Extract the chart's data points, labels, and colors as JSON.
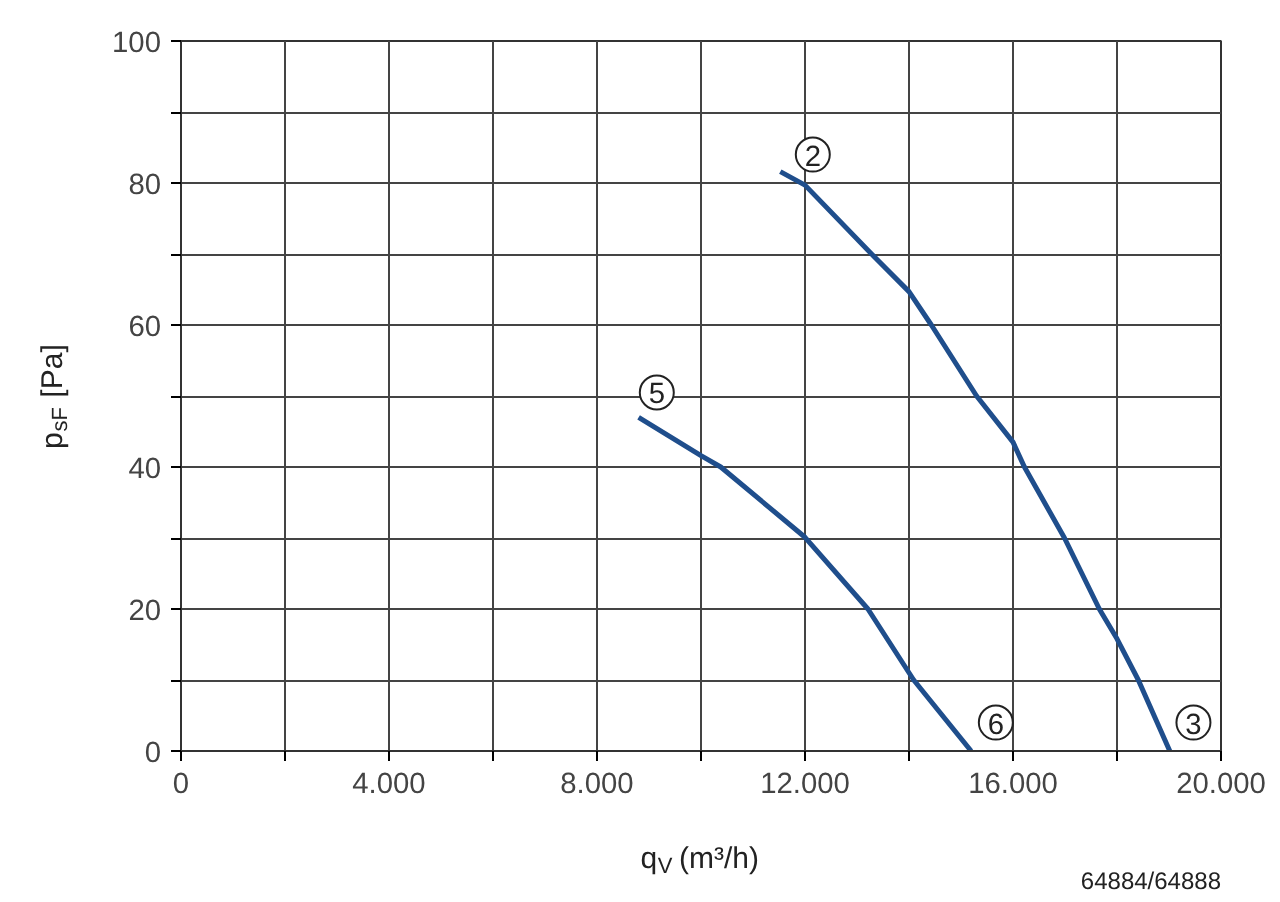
{
  "chart_data": {
    "type": "line",
    "xlabel": "q$_{V}$ (m³/h)",
    "ylabel": "p$_{sF}$ [Pa]",
    "xlim": [
      0,
      20000
    ],
    "ylim": [
      0,
      100
    ],
    "xticks": [
      0,
      {
        "value": 2000,
        "label": null
      },
      {
        "value": 4000,
        "label": "4.000"
      },
      {
        "value": 6000,
        "label": null
      },
      {
        "value": 8000,
        "label": "8.000"
      },
      {
        "value": 10000,
        "label": null
      },
      {
        "value": 12000,
        "label": "12.000"
      },
      {
        "value": 14000,
        "label": null
      },
      {
        "value": 16000,
        "label": "16.000"
      },
      {
        "value": 18000,
        "label": null
      },
      {
        "value": 20000,
        "label": "20.000"
      }
    ],
    "yticks": [
      0,
      {
        "value": 10,
        "label": null
      },
      20,
      {
        "value": 30,
        "label": null
      },
      40,
      {
        "value": 50,
        "label": null
      },
      60,
      {
        "value": 70,
        "label": null
      },
      80,
      {
        "value": 90,
        "label": null
      },
      100
    ],
    "grid": true,
    "marker": "none",
    "line_style": "solid",
    "series": [
      {
        "color": "#1f4e8c",
        "x": [
          11525,
          12000,
          13280,
          14000,
          14430,
          15300,
          16000,
          16220,
          16990,
          17660,
          18000,
          18410,
          19015
        ],
        "values": [
          81.6,
          79.7,
          70,
          64.7,
          60,
          50,
          43.5,
          40,
          30,
          20,
          15.8,
          10,
          0
        ]
      },
      {
        "color": "#1f4e8c",
        "x": [
          8800,
          10000,
          10380,
          12000,
          13210,
          14090,
          15195
        ],
        "values": [
          47.0,
          41.6,
          40,
          30.1,
          20,
          10,
          0
        ]
      }
    ],
    "annotations": [
      {
        "text": "2",
        "x": 12150,
        "y": 84
      },
      {
        "text": "5",
        "x": 9150,
        "y": 50.5
      },
      {
        "text": "6",
        "x": 15670,
        "y": 4
      },
      {
        "text": "3",
        "x": 19470,
        "y": 4
      },
      "64884/64888"
    ]
  }
}
